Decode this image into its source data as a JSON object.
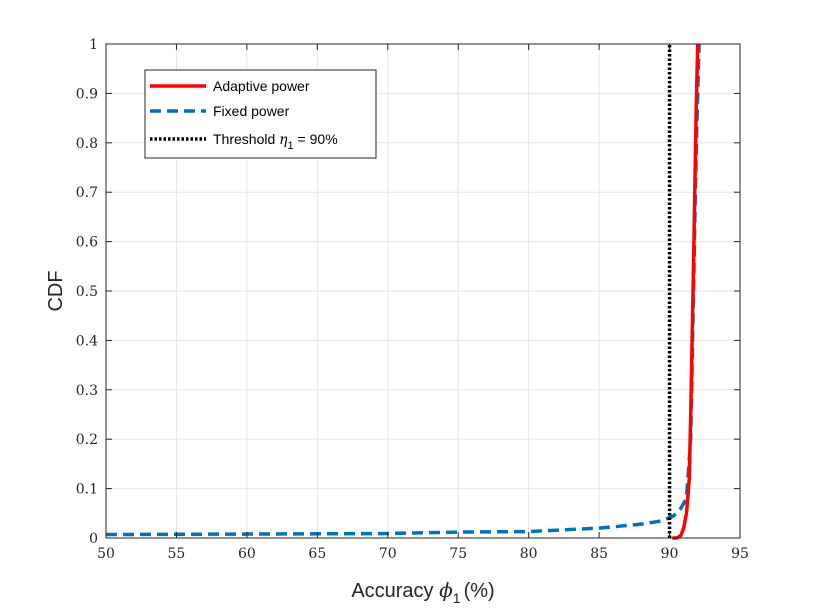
{
  "chart_data": {
    "type": "line",
    "xlabel": "Accuracy ϕ1 (%)",
    "ylabel": "CDF",
    "xlim": [
      50,
      95
    ],
    "ylim": [
      0,
      1
    ],
    "xticks": [
      50,
      55,
      60,
      65,
      70,
      75,
      80,
      85,
      90,
      95
    ],
    "yticks": [
      0,
      0.1,
      0.2,
      0.3,
      0.4,
      0.5,
      0.6,
      0.7,
      0.8,
      0.9,
      1
    ],
    "xtick_labels": [
      "50",
      "55",
      "60",
      "65",
      "70",
      "75",
      "80",
      "85",
      "90",
      "95"
    ],
    "ytick_labels": [
      "0",
      "0.1",
      "0.2",
      "0.3",
      "0.4",
      "0.5",
      "0.6",
      "0.7",
      "0.8",
      "0.9",
      "1"
    ],
    "grid": true,
    "legend_position": "top-left",
    "legend_labels": {
      "adaptive": "Adaptive power",
      "fixed": "Fixed power",
      "threshold_prefix": "Threshold ",
      "threshold_symbol": "η",
      "threshold_sub": "1",
      "threshold_suffix": " = 90%"
    },
    "xlabel_parts": {
      "prefix": "Accuracy ",
      "symbol": "ϕ",
      "sub": "1",
      "suffix": "(%)"
    },
    "series": [
      {
        "name": "Adaptive power",
        "color": "#ff0000",
        "style": "solid",
        "x": [
          90.2,
          90.5,
          90.8,
          91.0,
          91.2,
          91.4,
          91.5,
          91.6,
          91.7,
          91.8,
          91.9,
          92.0
        ],
        "y": [
          0.0,
          0.0,
          0.005,
          0.02,
          0.05,
          0.12,
          0.25,
          0.4,
          0.55,
          0.72,
          0.88,
          1.0
        ]
      },
      {
        "name": "Fixed power",
        "color": "#0072bd",
        "style": "dashed",
        "x": [
          50,
          60,
          70,
          75,
          80,
          85,
          88,
          89.5,
          90.3,
          90.8,
          91.2,
          91.5,
          91.7,
          91.9,
          92.1
        ],
        "y": [
          0.007,
          0.008,
          0.009,
          0.012,
          0.013,
          0.02,
          0.028,
          0.035,
          0.045,
          0.06,
          0.08,
          0.2,
          0.5,
          0.8,
          1.0
        ]
      },
      {
        "name": "Threshold η1 = 90%",
        "color": "#000000",
        "style": "dotted",
        "x": [
          90,
          90
        ],
        "y": [
          0,
          1
        ]
      }
    ]
  }
}
